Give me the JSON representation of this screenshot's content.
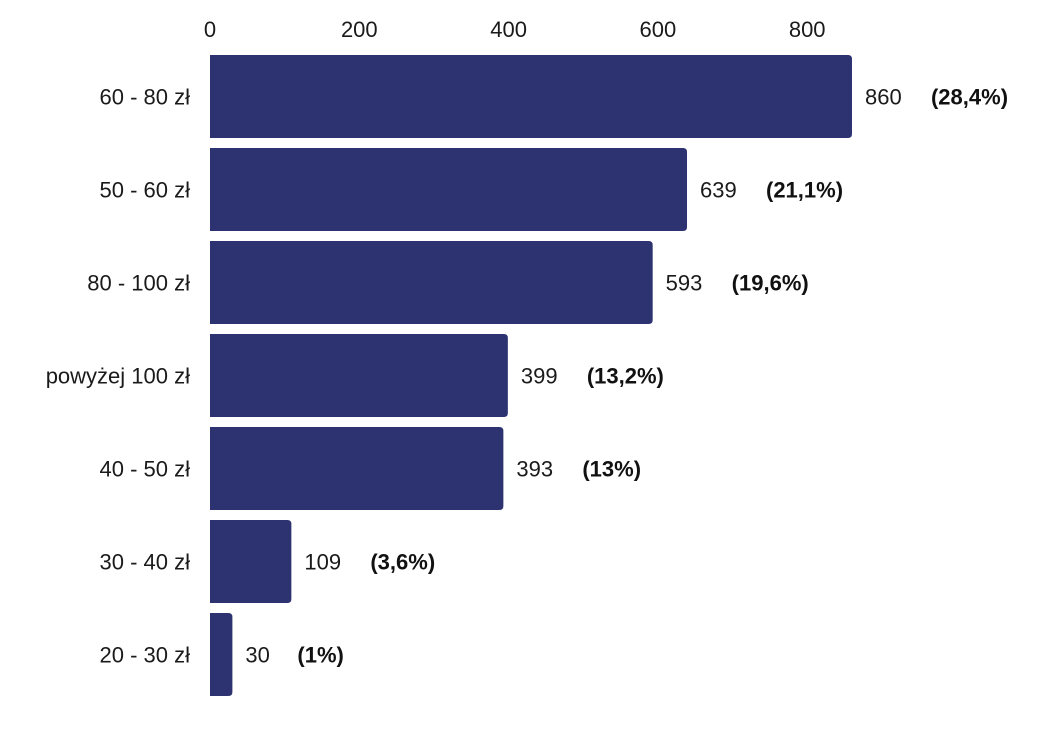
{
  "chart_data": {
    "type": "bar",
    "orientation": "horizontal",
    "title": "",
    "xlabel": "",
    "ylabel": "",
    "xlim": [
      0,
      860
    ],
    "x_ticks": [
      0,
      200,
      400,
      600,
      800
    ],
    "x_tick_labels": [
      "0",
      "200",
      "400",
      "600",
      "800"
    ],
    "axis_position": "top",
    "grid": false,
    "legend": "none",
    "bar_color": "#2c3370",
    "categories": [
      "60 - 80 zł",
      "50 - 60 zł",
      "80 - 100 zł",
      "powyżej 100 zł",
      "40 - 50 zł",
      "30 - 40 zł",
      "20 - 30 zł"
    ],
    "values": [
      860,
      639,
      593,
      399,
      393,
      109,
      30
    ],
    "value_labels": [
      "860",
      "639",
      "593",
      "399",
      "393",
      "109",
      "30"
    ],
    "percent_labels": [
      "(28,4%)",
      "(21,1%)",
      "(19,6%)",
      "(13,2%)",
      "(13%)",
      "(3,6%)",
      "(1%)"
    ]
  }
}
